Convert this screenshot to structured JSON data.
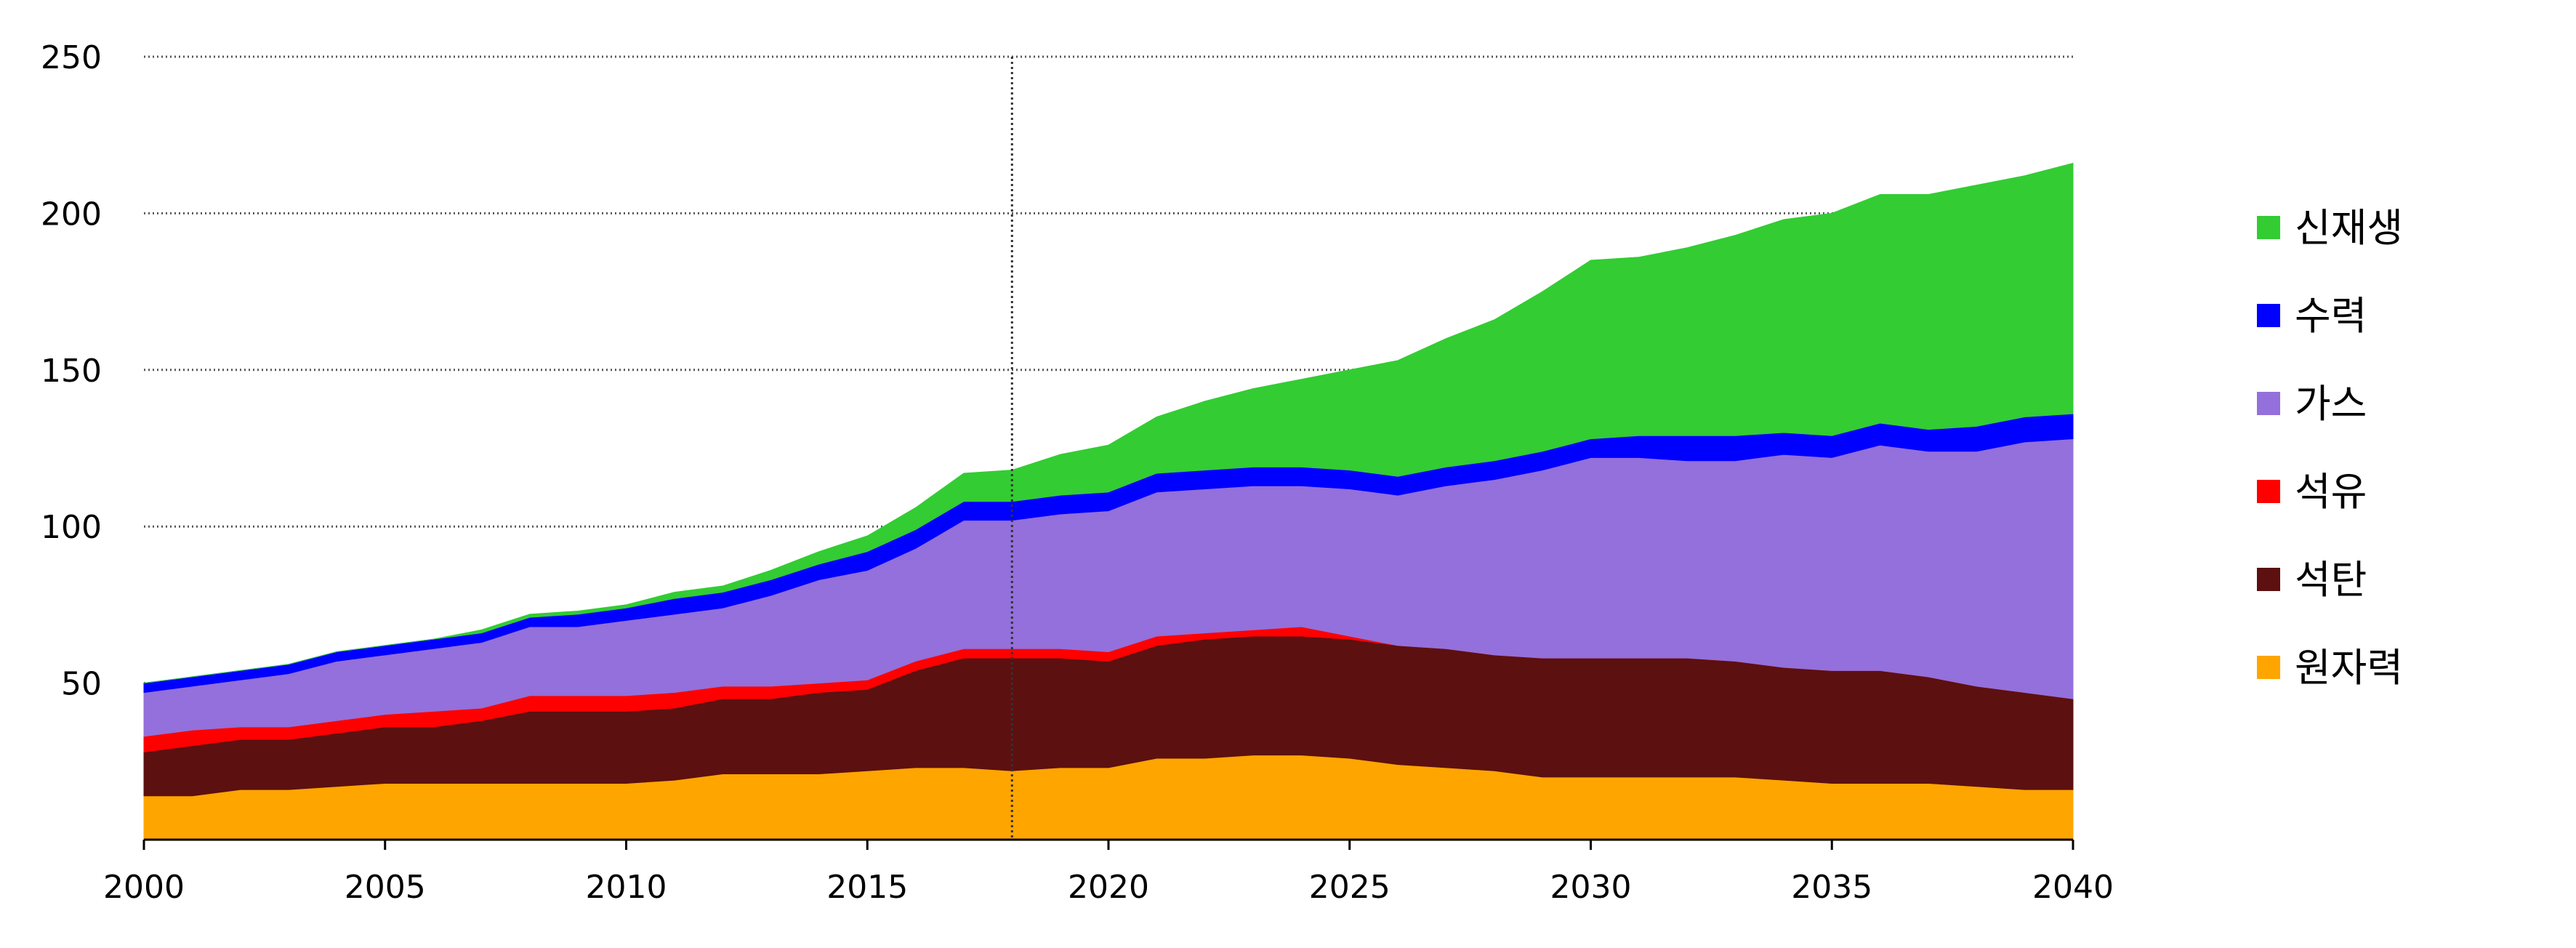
{
  "chart_data": {
    "type": "area",
    "stacked": true,
    "x": [
      2000,
      2001,
      2002,
      2003,
      2004,
      2005,
      2006,
      2007,
      2008,
      2009,
      2010,
      2011,
      2012,
      2013,
      2014,
      2015,
      2016,
      2017,
      2018,
      2019,
      2020,
      2021,
      2022,
      2023,
      2024,
      2025,
      2026,
      2027,
      2028,
      2029,
      2030,
      2031,
      2032,
      2033,
      2034,
      2035,
      2036,
      2037,
      2038,
      2039,
      2040
    ],
    "xlim": [
      2000,
      2040
    ],
    "ylim": [
      0,
      250
    ],
    "x_ticks": [
      "2000",
      "2005",
      "2010",
      "2015",
      "2020",
      "2025",
      "2030",
      "2035",
      "2040"
    ],
    "y_ticks": [
      "50",
      "100",
      "150",
      "200",
      "250"
    ],
    "grid": "horizontal-dotted",
    "vertical_marker_x": 2018,
    "legend_position": "right",
    "series": [
      {
        "name": "원자력",
        "color": "#FFA500",
        "values": [
          14,
          14,
          16,
          16,
          17,
          18,
          18,
          18,
          18,
          18,
          18,
          19,
          21,
          21,
          21,
          22,
          23,
          23,
          22,
          23,
          23,
          26,
          26,
          27,
          27,
          26,
          24,
          23,
          22,
          20,
          20,
          20,
          20,
          20,
          19,
          18,
          18,
          18,
          17,
          16,
          16
        ]
      },
      {
        "name": "석탄",
        "color": "#5C1010",
        "values": [
          14,
          16,
          16,
          16,
          17,
          18,
          18,
          20,
          23,
          23,
          23,
          23,
          24,
          24,
          26,
          26,
          31,
          35,
          36,
          35,
          34,
          36,
          38,
          38,
          38,
          38,
          38,
          38,
          37,
          38,
          38,
          38,
          38,
          37,
          36,
          36,
          36,
          34,
          32,
          31,
          29
        ]
      },
      {
        "name": "석유",
        "color": "#FF0000",
        "values": [
          5,
          5,
          4,
          4,
          4,
          4,
          5,
          4,
          5,
          5,
          5,
          5,
          4,
          4,
          3,
          3,
          3,
          3,
          3,
          3,
          3,
          3,
          2,
          2,
          3,
          1,
          0,
          0,
          0,
          0,
          0,
          0,
          0,
          0,
          0,
          0,
          0,
          0,
          0,
          0,
          0
        ]
      },
      {
        "name": "가스",
        "color": "#9370DB",
        "values": [
          14,
          14,
          15,
          17,
          19,
          19,
          20,
          21,
          22,
          22,
          24,
          25,
          25,
          29,
          33,
          35,
          36,
          41,
          41,
          43,
          45,
          46,
          46,
          46,
          45,
          47,
          48,
          52,
          56,
          60,
          64,
          64,
          63,
          64,
          68,
          68,
          72,
          72,
          75,
          80,
          83
        ]
      },
      {
        "name": "수력",
        "color": "#0000FF",
        "values": [
          3,
          3,
          3,
          3,
          3,
          3,
          3,
          3,
          3,
          4,
          4,
          5,
          5,
          5,
          5,
          6,
          6,
          6,
          6,
          6,
          6,
          6,
          6,
          6,
          6,
          6,
          6,
          6,
          6,
          6,
          6,
          7,
          8,
          8,
          7,
          7,
          7,
          7,
          8,
          8,
          8
        ]
      },
      {
        "name": "신재생",
        "color": "#33CC33",
        "values": [
          0,
          0,
          0,
          0,
          0,
          0,
          0,
          1,
          1,
          1,
          1,
          2,
          2,
          3,
          4,
          5,
          7,
          9,
          10,
          13,
          15,
          18,
          22,
          25,
          28,
          32,
          37,
          41,
          45,
          51,
          57,
          57,
          60,
          64,
          68,
          71,
          73,
          75,
          77,
          77,
          80
        ]
      }
    ]
  }
}
